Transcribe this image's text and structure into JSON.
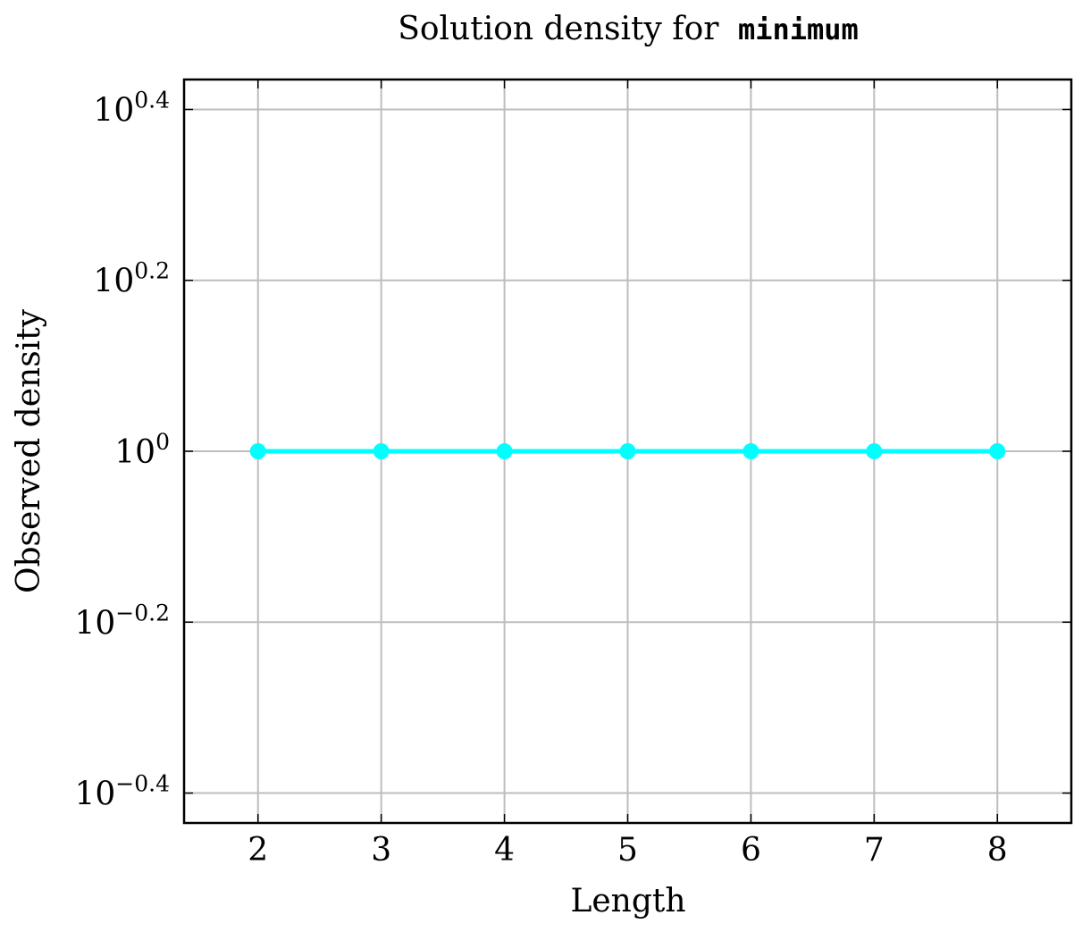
{
  "chart_data": {
    "type": "line",
    "title": "Solution density for",
    "title_code": "minimum",
    "xlabel": "Length",
    "ylabel": "Observed density",
    "x": [
      2,
      3,
      4,
      5,
      6,
      7,
      8
    ],
    "series": [
      {
        "values": [
          1,
          1,
          1,
          1,
          1,
          1,
          1
        ],
        "color": "#00ffff"
      }
    ],
    "x_ticks": [
      2,
      3,
      4,
      5,
      6,
      7,
      8
    ],
    "xlim": [
      1.4,
      8.6
    ],
    "y_scale": "log10",
    "y_ticks": [
      {
        "base": "10",
        "exp": "0.4",
        "log10": 0.4
      },
      {
        "base": "10",
        "exp": "0.2",
        "log10": 0.2
      },
      {
        "base": "10",
        "exp": "0",
        "log10": 0
      },
      {
        "base": "10",
        "exp": "−0.2",
        "log10": -0.2
      },
      {
        "base": "10",
        "exp": "−0.4",
        "log10": -0.4
      }
    ],
    "ylim_log10": [
      -0.435,
      0.435
    ],
    "grid": true,
    "legend": "none"
  }
}
